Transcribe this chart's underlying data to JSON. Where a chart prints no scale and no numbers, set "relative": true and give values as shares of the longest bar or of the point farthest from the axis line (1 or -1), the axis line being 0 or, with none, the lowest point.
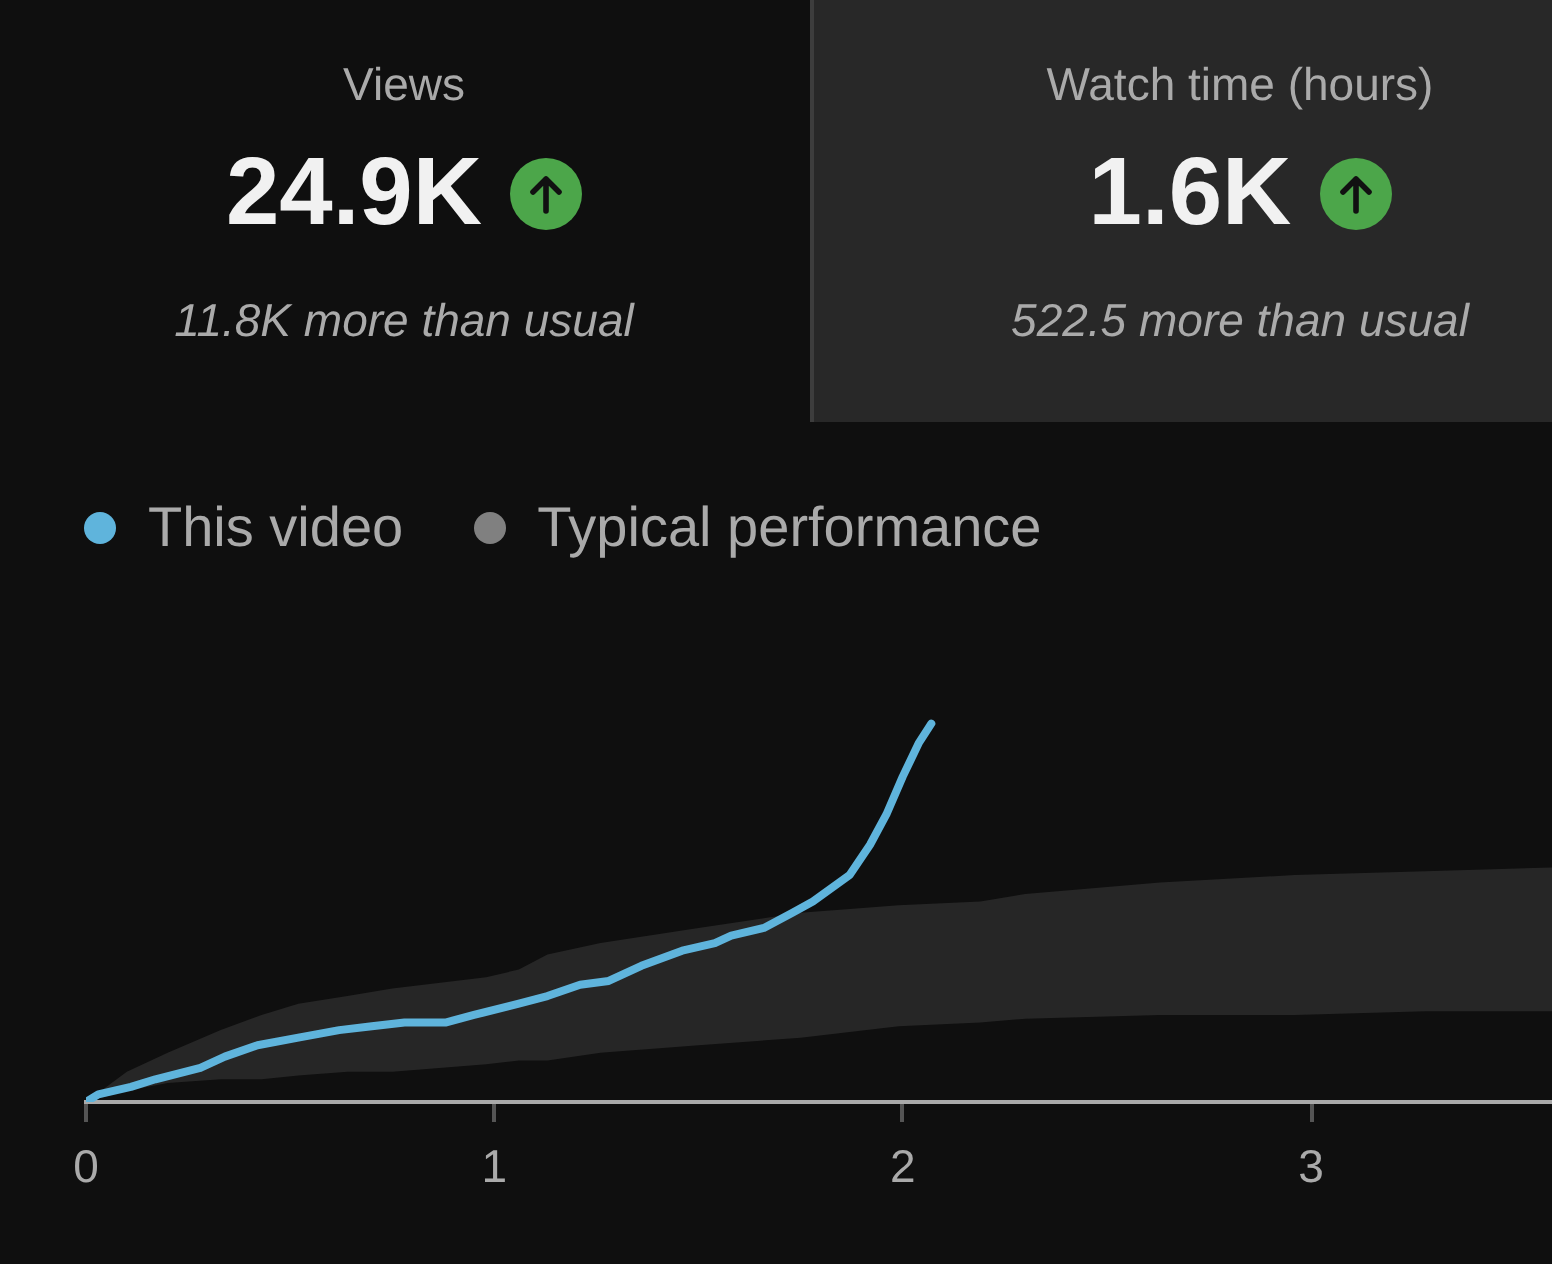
{
  "chart_data": [
    {
      "type": "other",
      "title": "Views",
      "subtitle": "24.9K",
      "annotations": [
        "11.8K more than usual"
      ]
    },
    {
      "type": "other",
      "title": "Watch time (hours)",
      "subtitle": "1.6K",
      "annotations": [
        "522.5 more than usual"
      ]
    },
    {
      "type": "line",
      "relative": true,
      "xlim": [
        0,
        3.59
      ],
      "xticks": [
        0,
        1,
        2,
        3
      ],
      "legend": "top left",
      "series": [
        {
          "name": "This video",
          "color": "#5fb4dc",
          "x": [
            0,
            0.03,
            0.11,
            0.17,
            0.28,
            0.34,
            0.42,
            0.52,
            0.57,
            0.62,
            0.7,
            0.78,
            0.88,
            0.95,
            1.06,
            1.13,
            1.21,
            1.28,
            1.36,
            1.41,
            1.46,
            1.54,
            1.58,
            1.66,
            1.73,
            1.78,
            1.87,
            1.92,
            1.96,
            2,
            2.04,
            2.07
          ],
          "values": [
            0,
            0.02,
            0.04,
            0.06,
            0.09,
            0.12,
            0.15,
            0.17,
            0.18,
            0.19,
            0.2,
            0.21,
            0.21,
            0.23,
            0.26,
            0.28,
            0.31,
            0.32,
            0.36,
            0.38,
            0.4,
            0.42,
            0.44,
            0.46,
            0.5,
            0.53,
            0.6,
            0.68,
            0.76,
            0.86,
            0.95,
            1
          ]
        },
        {
          "name": "Typical performance",
          "color": "#808080",
          "x": [
            0,
            0.1,
            0.2,
            0.33,
            0.43,
            0.52,
            0.64,
            0.75,
            0.98,
            1.06,
            1.13,
            1.26,
            1.5,
            1.75,
            1.99,
            2.19,
            2.3,
            2.63,
            2.96,
            3.28,
            3.59
          ],
          "values": [
            null,
            null,
            null,
            null,
            null,
            null,
            null,
            null,
            null,
            null,
            null,
            null,
            null,
            null,
            null,
            null,
            null,
            null,
            null,
            null,
            null
          ],
          "lower": [
            0,
            0.03,
            0.05,
            0.06,
            0.06,
            0.07,
            0.08,
            0.08,
            0.1,
            0.11,
            0.11,
            0.13,
            0.15,
            0.17,
            0.2,
            0.21,
            0.22,
            0.23,
            0.23,
            0.24,
            0.24
          ],
          "upper": [
            0,
            0.08,
            0.13,
            0.19,
            0.23,
            0.26,
            0.28,
            0.3,
            0.33,
            0.35,
            0.39,
            0.42,
            0.46,
            0.5,
            0.52,
            0.53,
            0.55,
            0.58,
            0.6,
            0.61,
            0.62
          ]
        }
      ]
    }
  ]
}
